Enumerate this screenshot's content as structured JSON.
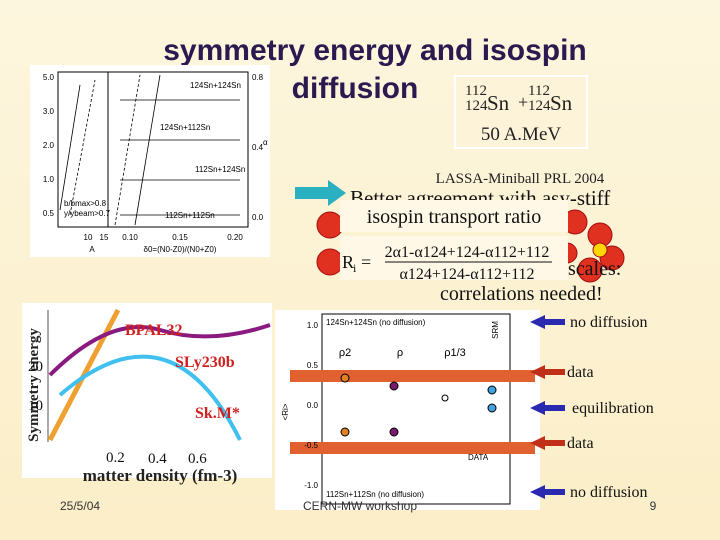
{
  "title_line1": "symmetry energy and isospin",
  "title_line2": "diffusion",
  "reaction": {
    "mass_upper": "112",
    "mass_lower": "124",
    "element": "Sn",
    "plus": "+"
  },
  "energy": "50 A.MeV",
  "reference": "LASSA-Miniball PRL 2004",
  "notes": [
    "Better agreement with asy-stiff",
    "scales:",
    "correlations needed!"
  ],
  "ratio_box": {
    "title": "isospin transport ratio",
    "lhs": "R",
    "lhs_sub": "i",
    "equals": "=",
    "numerator": "2α1-α124+124-α112+112",
    "denominator": "α124+124-α112+112"
  },
  "top_plot": {
    "left_ticks": [
      "5.0",
      "3.0",
      "2.0",
      "1.0",
      "0.5"
    ],
    "right_ticks": [
      "0.8",
      "0.4",
      "0.0"
    ],
    "bottom_ticks": [
      "10",
      "15",
      "0.10",
      "0.15",
      "0.20"
    ],
    "x_label_left": "A",
    "x_label_right": "δ0=(N0-Z0)/(N0+Z0)",
    "right_label": "α",
    "curve_labels": [
      "124Sn+124Sn",
      "124Sn+112Sn",
      "112Sn+124Sn",
      "112Sn+112Sn"
    ],
    "legend": [
      "b/bmax>0.8",
      "y/ybeam>0.7"
    ]
  },
  "density_plot": {
    "y_label": "Symmetry energy",
    "x_label": "matter density (fm-3)",
    "y_ticks": [
      "20",
      "10"
    ],
    "x_ticks": [
      "0.2",
      "0.4",
      "0.6"
    ],
    "curves": [
      "BPAL32",
      "SLy230b",
      "Sk.M*"
    ]
  },
  "ri_plot": {
    "y_label": "<Ri>",
    "y_ticks": [
      "1.0",
      "0.5",
      "0.0",
      "-0.5",
      "-1.0"
    ],
    "top_caption": "124Sn+124Sn (no diffusion)",
    "bottom_caption": "112Sn+112Sn (no diffusion)",
    "columns": [
      "ρ2",
      "ρ",
      "ρ1/3"
    ],
    "side_labels": [
      "SRM",
      "DATA"
    ]
  },
  "side_labels": [
    "no diffusion",
    "data",
    "equilibration",
    "data",
    "no diffusion"
  ],
  "footer": {
    "date": "25/5/04",
    "event": "CERN-MW workshop",
    "page": "9"
  }
}
